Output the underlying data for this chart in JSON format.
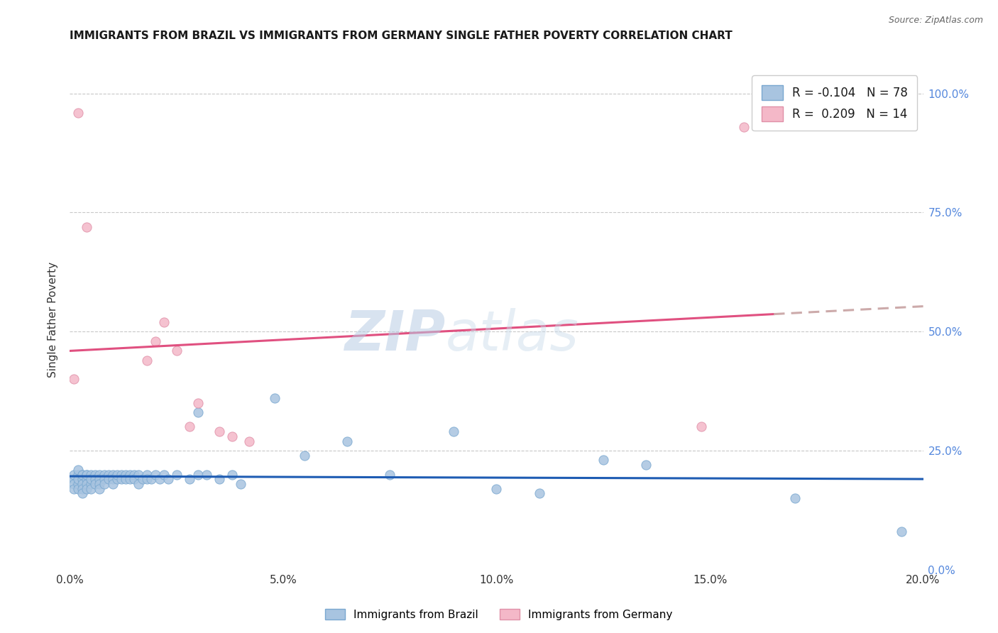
{
  "title": "IMMIGRANTS FROM BRAZIL VS IMMIGRANTS FROM GERMANY SINGLE FATHER POVERTY CORRELATION CHART",
  "source": "Source: ZipAtlas.com",
  "ylabel_left": "Single Father Poverty",
  "legend_entries": [
    {
      "label_r": "R = -0.104",
      "label_n": "N = 78",
      "color": "#a8c4e0"
    },
    {
      "label_r": "R =  0.209",
      "label_n": "N = 14",
      "color": "#f4b8c8"
    }
  ],
  "legend_labels_bottom": [
    "Immigrants from Brazil",
    "Immigrants from Germany"
  ],
  "xlim": [
    0.0,
    0.2
  ],
  "ylim": [
    0.0,
    1.05
  ],
  "yticks_right": [
    0.0,
    0.25,
    0.5,
    0.75,
    1.0
  ],
  "ytick_labels_right": [
    "0.0%",
    "25.0%",
    "50.0%",
    "75.0%",
    "100.0%"
  ],
  "xticks": [
    0.0,
    0.05,
    0.1,
    0.15,
    0.2
  ],
  "xtick_labels": [
    "0.0%",
    "5.0%",
    "10.0%",
    "15.0%",
    "20.0%"
  ],
  "brazil_x": [
    0.001,
    0.001,
    0.001,
    0.001,
    0.002,
    0.002,
    0.002,
    0.002,
    0.002,
    0.003,
    0.003,
    0.003,
    0.003,
    0.003,
    0.003,
    0.004,
    0.004,
    0.004,
    0.004,
    0.004,
    0.005,
    0.005,
    0.005,
    0.005,
    0.006,
    0.006,
    0.006,
    0.007,
    0.007,
    0.007,
    0.007,
    0.008,
    0.008,
    0.008,
    0.009,
    0.009,
    0.01,
    0.01,
    0.01,
    0.011,
    0.011,
    0.012,
    0.012,
    0.013,
    0.013,
    0.014,
    0.014,
    0.015,
    0.015,
    0.016,
    0.016,
    0.017,
    0.018,
    0.018,
    0.019,
    0.02,
    0.021,
    0.022,
    0.023,
    0.025,
    0.028,
    0.03,
    0.03,
    0.032,
    0.035,
    0.038,
    0.04,
    0.048,
    0.055,
    0.065,
    0.075,
    0.09,
    0.1,
    0.11,
    0.125,
    0.135,
    0.17,
    0.195
  ],
  "brazil_y": [
    0.19,
    0.2,
    0.18,
    0.17,
    0.2,
    0.18,
    0.19,
    0.21,
    0.17,
    0.2,
    0.19,
    0.18,
    0.17,
    0.2,
    0.16,
    0.2,
    0.19,
    0.18,
    0.2,
    0.17,
    0.2,
    0.18,
    0.19,
    0.17,
    0.2,
    0.19,
    0.18,
    0.2,
    0.19,
    0.18,
    0.17,
    0.2,
    0.19,
    0.18,
    0.2,
    0.19,
    0.2,
    0.19,
    0.18,
    0.19,
    0.2,
    0.2,
    0.19,
    0.2,
    0.19,
    0.2,
    0.19,
    0.2,
    0.19,
    0.2,
    0.18,
    0.19,
    0.2,
    0.19,
    0.19,
    0.2,
    0.19,
    0.2,
    0.19,
    0.2,
    0.19,
    0.33,
    0.2,
    0.2,
    0.19,
    0.2,
    0.18,
    0.36,
    0.24,
    0.27,
    0.2,
    0.29,
    0.17,
    0.16,
    0.23,
    0.22,
    0.15,
    0.08
  ],
  "germany_x": [
    0.001,
    0.002,
    0.004,
    0.018,
    0.02,
    0.022,
    0.025,
    0.028,
    0.03,
    0.035,
    0.038,
    0.042,
    0.148,
    0.158
  ],
  "germany_y": [
    0.4,
    0.96,
    0.72,
    0.44,
    0.48,
    0.52,
    0.46,
    0.3,
    0.35,
    0.29,
    0.28,
    0.27,
    0.3,
    0.93
  ],
  "brazil_line_color": "#1e5cb3",
  "germany_line_color": "#e05080",
  "germany_dashed_color": "#ccaaaa",
  "brazil_scatter_color": "#a8c4e0",
  "germany_scatter_color": "#f4b8c8",
  "brazil_scatter_edge": "#7aa8d0",
  "germany_scatter_edge": "#e090a8",
  "watermark_zip": "ZIP",
  "watermark_atlas": "atlas",
  "background_color": "#ffffff",
  "grid_color": "#d8d8d8",
  "dashed_line_color": "#c8c8c8"
}
